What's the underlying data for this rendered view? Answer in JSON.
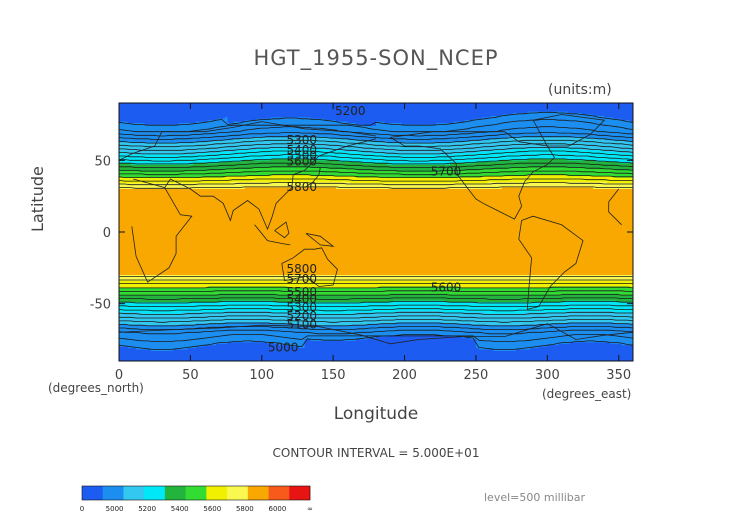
{
  "figure": {
    "units": "(units:m)",
    "x_unit": "(degrees_north)",
    "x_unit2": "(degrees_east)",
    "contour_interval": "CONTOUR INTERVAL = 5.000E+01",
    "level": "level=500 millibar"
  },
  "colors": {
    "background": "#ffffff",
    "fill_4900": "#1c5cf0",
    "fill_5000": "#1c8ef0",
    "fill_5200": "#32c8f0",
    "fill_5400": "#00e8f8",
    "fill_5500": "#22b43c",
    "fill_5600": "#32dc32",
    "fill_5700": "#f0f000",
    "fill_5800": "#f8f850",
    "fill_5900": "#f8a800",
    "contour": "#1a1a1a"
  },
  "chart_data": {
    "type": "heatmap",
    "title": "HGT_1955-SON_NCEP",
    "xlabel": "Longitude",
    "ylabel": "Latitude",
    "xlim": [
      0,
      360
    ],
    "ylim": [
      -90,
      90
    ],
    "x_ticks": [
      0,
      50,
      100,
      150,
      200,
      250,
      300,
      350
    ],
    "y_ticks": [
      50,
      0,
      -50
    ],
    "grid": false,
    "contour_labels": [
      {
        "text": "5200",
        "lon": 162,
        "lat": 85
      },
      {
        "text": "5300",
        "lon": 128,
        "lat": 65
      },
      {
        "text": "5400",
        "lon": 128,
        "lat": 58
      },
      {
        "text": "5500",
        "lon": 128,
        "lat": 54
      },
      {
        "text": "5600",
        "lon": 128,
        "lat": 50
      },
      {
        "text": "5700",
        "lon": 229,
        "lat": 43
      },
      {
        "text": "5800",
        "lon": 128,
        "lat": 32
      },
      {
        "text": "5800",
        "lon": 128,
        "lat": -25
      },
      {
        "text": "5700",
        "lon": 128,
        "lat": -32
      },
      {
        "text": "5600",
        "lon": 229,
        "lat": -38
      },
      {
        "text": "5500",
        "lon": 128,
        "lat": -41
      },
      {
        "text": "5400",
        "lon": 128,
        "lat": -46
      },
      {
        "text": "5300",
        "lon": 128,
        "lat": -52
      },
      {
        "text": "5200",
        "lon": 128,
        "lat": -58
      },
      {
        "text": "5100",
        "lon": 128,
        "lat": -64
      },
      {
        "text": "5000",
        "lon": 115,
        "lat": -80
      }
    ],
    "colorbar": {
      "labels": [
        "0",
        "5000",
        "5200",
        "5400",
        "5600",
        "5800",
        "6000",
        "∞"
      ],
      "colors": [
        "#1c5cf0",
        "#1c8ef0",
        "#32c8f0",
        "#00e8f8",
        "#22b43c",
        "#32dc32",
        "#f0f000",
        "#f8f850",
        "#f8a800",
        "#f85a1c",
        "#e81414"
      ]
    }
  }
}
